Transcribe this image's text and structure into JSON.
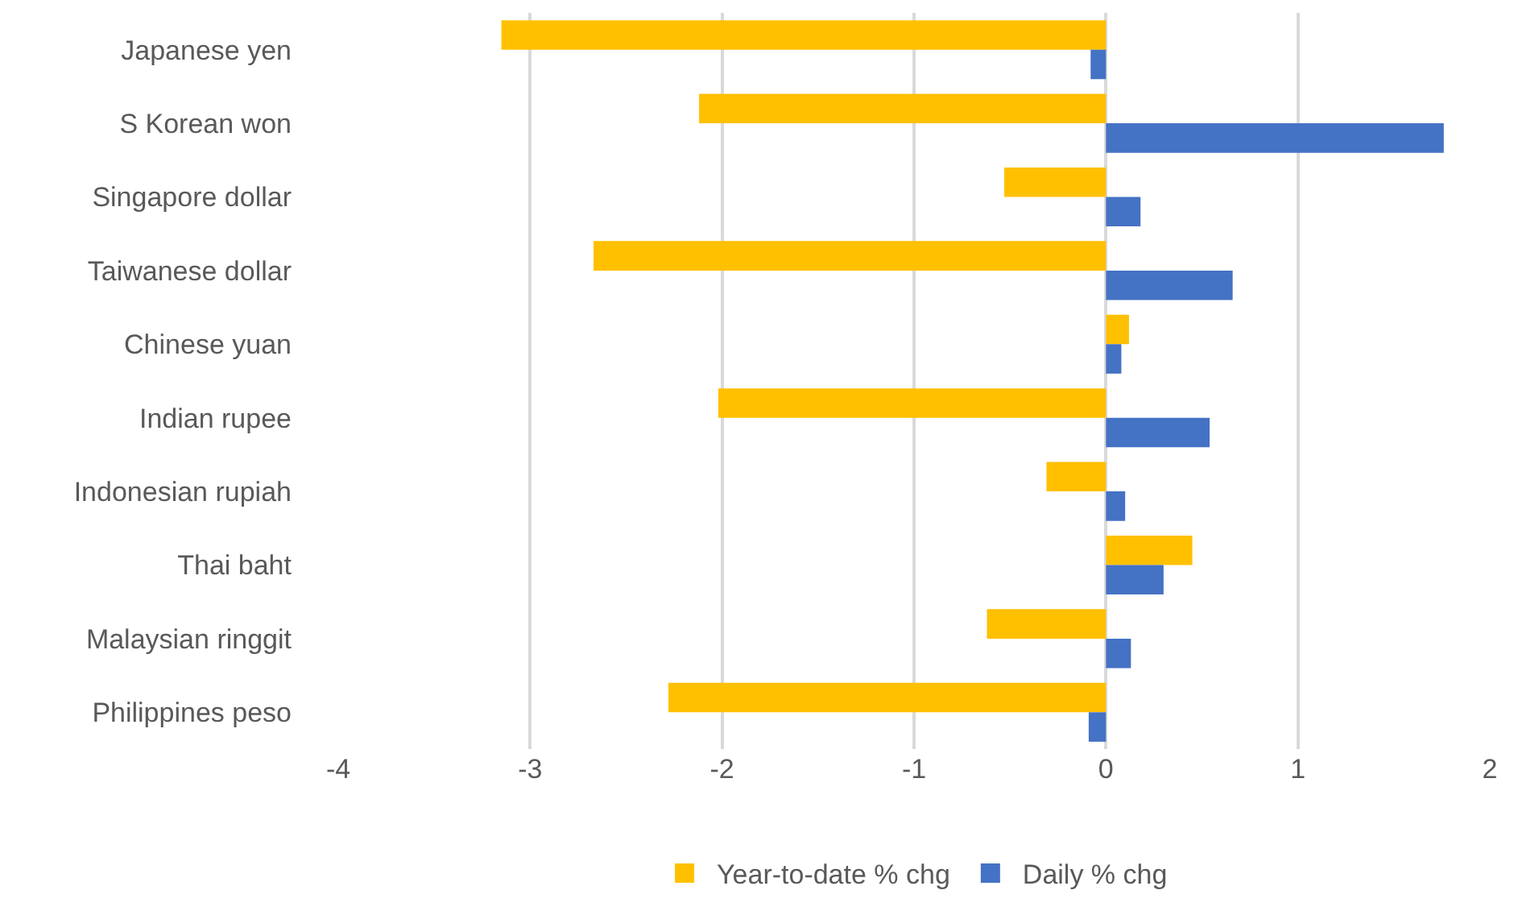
{
  "chart_data": {
    "type": "bar",
    "orientation": "horizontal",
    "categories": [
      "Japanese yen",
      "S Korean won",
      "Singapore dollar",
      "Taiwanese dollar",
      "Chinese yuan",
      "Indian rupee",
      "Indonesian rupiah",
      "Thai baht",
      "Malaysian ringgit",
      "Philippines peso"
    ],
    "series": [
      {
        "name": "Year-to-date % chg",
        "color": "#ffc000",
        "values": [
          -3.15,
          -2.12,
          -0.53,
          -2.67,
          0.12,
          -2.02,
          -0.31,
          0.45,
          -0.62,
          -2.28
        ]
      },
      {
        "name": "Daily % chg",
        "color": "#4472c4",
        "values": [
          -0.08,
          1.76,
          0.18,
          0.66,
          0.08,
          0.54,
          0.1,
          0.3,
          0.13,
          -0.09
        ]
      }
    ],
    "xlim": [
      -4,
      2
    ],
    "xticks": [
      -4,
      -3,
      -2,
      -1,
      0,
      1,
      2
    ],
    "grid": "x",
    "legend": "bottom"
  }
}
